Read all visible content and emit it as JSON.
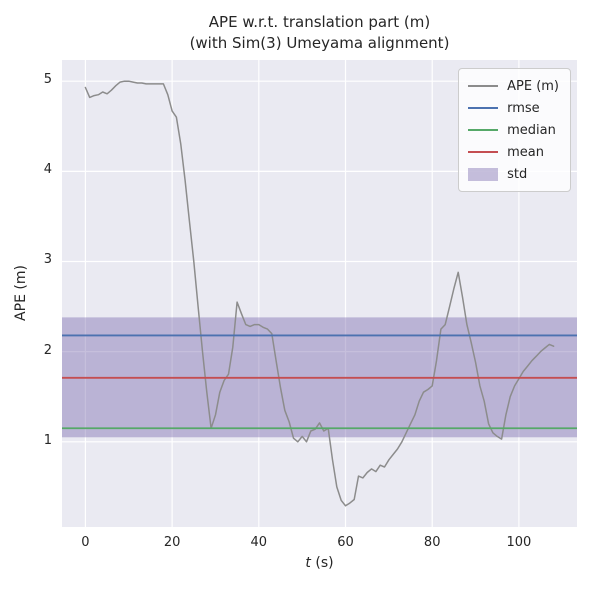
{
  "title": {
    "line1": "APE w.r.t. translation part (m)",
    "line2": "(with Sim(3) Umeyama alignment)"
  },
  "chart_data": {
    "type": "line",
    "title": "APE w.r.t. translation part (m) (with Sim(3) Umeyama alignment)",
    "xlabel": "t (s)",
    "xlabel_var": "t",
    "xlabel_rest": " (s)",
    "ylabel": "APE (m)",
    "xlim": [
      -5.4,
      113.4
    ],
    "ylim": [
      0.055,
      5.235
    ],
    "xticks": [
      0,
      20,
      40,
      60,
      80,
      100
    ],
    "yticks": [
      1,
      2,
      3,
      4,
      5
    ],
    "grid": true,
    "plot_background": "#EAEAF2",
    "grid_color": "#ffffff",
    "legend_position": "upper right",
    "series": [
      {
        "name": "APE (m)",
        "type": "line",
        "color": "#8c8c8c",
        "x": [
          0,
          1,
          2,
          3,
          4,
          5,
          6,
          7,
          8,
          9,
          10,
          11,
          12,
          13,
          14,
          15,
          16,
          17,
          18,
          19,
          20,
          21,
          22,
          23,
          24,
          25,
          26,
          27,
          28,
          29,
          30,
          31,
          32,
          33,
          34,
          35,
          36,
          37,
          38,
          39,
          40,
          41,
          42,
          43,
          44,
          45,
          46,
          47,
          48,
          49,
          50,
          51,
          52,
          53,
          54,
          55,
          56,
          57,
          58,
          59,
          60,
          61,
          62,
          63,
          64,
          65,
          66,
          67,
          68,
          69,
          70,
          71,
          72,
          73,
          74,
          75,
          76,
          77,
          78,
          79,
          80,
          81,
          82,
          83,
          84,
          85,
          86,
          87,
          88,
          89,
          90,
          91,
          92,
          93,
          94,
          95,
          96,
          97,
          98,
          99,
          100,
          101,
          102,
          103,
          104,
          105,
          106,
          107,
          108
        ],
        "y": [
          4.93,
          4.82,
          4.84,
          4.85,
          4.88,
          4.86,
          4.9,
          4.95,
          4.99,
          5.0,
          5.0,
          4.99,
          4.98,
          4.98,
          4.97,
          4.97,
          4.97,
          4.97,
          4.97,
          4.85,
          4.67,
          4.6,
          4.3,
          3.9,
          3.45,
          3.0,
          2.5,
          2.0,
          1.55,
          1.15,
          1.3,
          1.55,
          1.68,
          1.75,
          2.05,
          2.55,
          2.42,
          2.3,
          2.28,
          2.3,
          2.3,
          2.27,
          2.25,
          2.2,
          1.9,
          1.6,
          1.35,
          1.22,
          1.04,
          1.0,
          1.06,
          1.0,
          1.12,
          1.14,
          1.21,
          1.12,
          1.15,
          0.8,
          0.5,
          0.35,
          0.29,
          0.32,
          0.36,
          0.62,
          0.6,
          0.66,
          0.7,
          0.67,
          0.74,
          0.72,
          0.8,
          0.86,
          0.92,
          1.0,
          1.1,
          1.2,
          1.3,
          1.45,
          1.55,
          1.58,
          1.62,
          1.9,
          2.25,
          2.3,
          2.5,
          2.7,
          2.88,
          2.6,
          2.3,
          2.1,
          1.88,
          1.62,
          1.45,
          1.2,
          1.1,
          1.06,
          1.03,
          1.3,
          1.5,
          1.62,
          1.7,
          1.78,
          1.84,
          1.9,
          1.95,
          2.0,
          2.04,
          2.08,
          2.06
        ]
      },
      {
        "name": "rmse",
        "type": "hline",
        "color": "#4C72B0",
        "value": 2.18
      },
      {
        "name": "median",
        "type": "hline",
        "color": "#55A868",
        "value": 1.15
      },
      {
        "name": "mean",
        "type": "hline",
        "color": "#C44E52",
        "value": 1.71
      },
      {
        "name": "std",
        "type": "band",
        "color": "#8172B2",
        "alpha": 0.45,
        "range": [
          1.05,
          2.38
        ]
      }
    ]
  }
}
